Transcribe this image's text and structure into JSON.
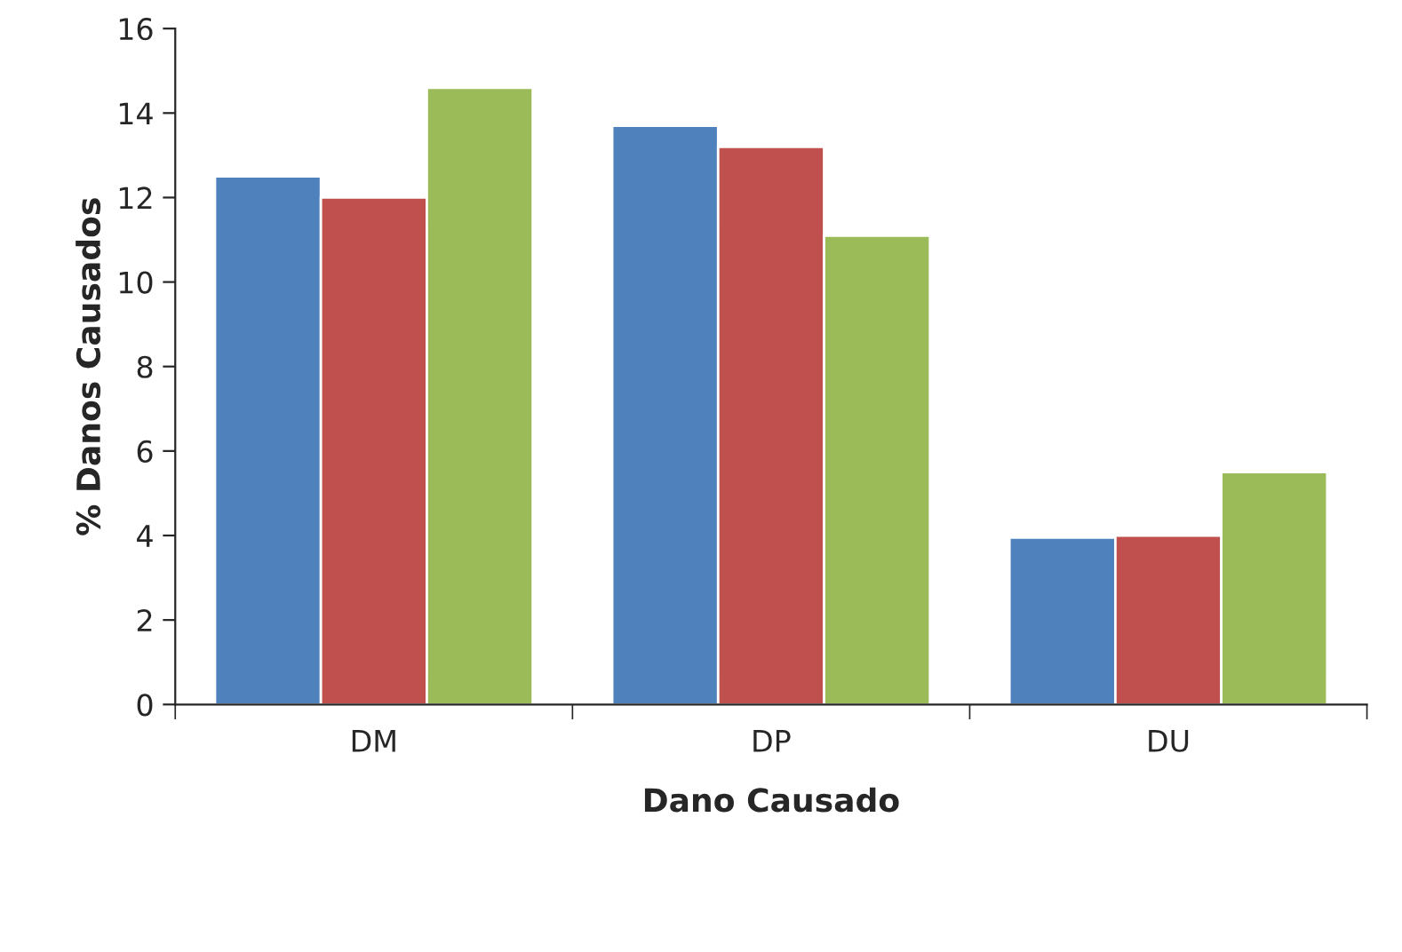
{
  "chart_data": {
    "type": "bar",
    "xlabel": "Dano Causado",
    "ylabel": "% Danos Causados",
    "categories": [
      "DM",
      "DP",
      "DU"
    ],
    "series": [
      {
        "color": "#4f81bd",
        "values": [
          12.5,
          13.7,
          3.95
        ]
      },
      {
        "color": "#c0504d",
        "values": [
          12.0,
          13.2,
          4.0
        ]
      },
      {
        "color": "#9bbb59",
        "values": [
          14.6,
          11.1,
          5.5
        ]
      }
    ],
    "ylim": [
      0,
      16
    ],
    "yticks": [
      0,
      2,
      4,
      6,
      8,
      10,
      12,
      14,
      16
    ],
    "grid": false
  }
}
